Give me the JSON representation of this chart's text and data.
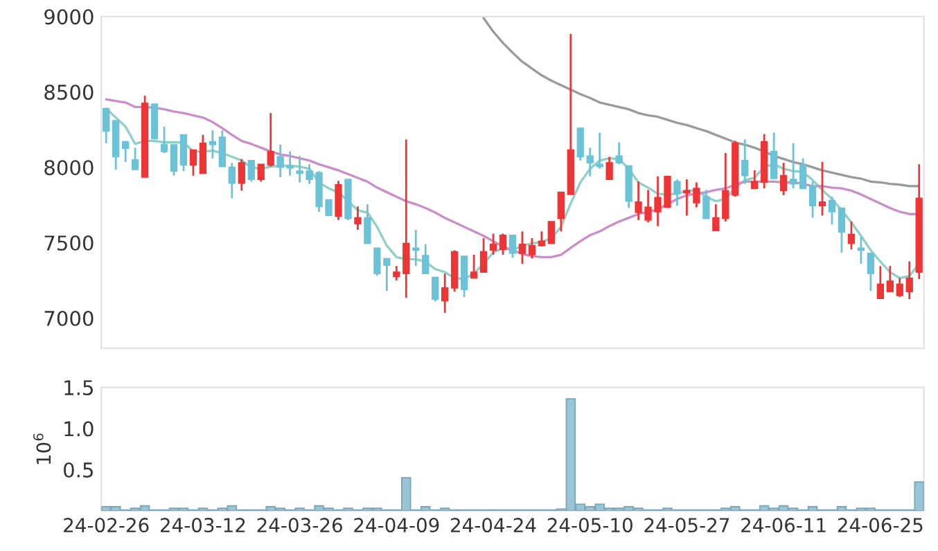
{
  "chart_data": [
    {
      "type": "candlestick",
      "categories": [
        null,
        null,
        null,
        null,
        null,
        null,
        null,
        null,
        null,
        null,
        null,
        null,
        null,
        null,
        null,
        null,
        null,
        null,
        null,
        null,
        null,
        null,
        null,
        null,
        null,
        null,
        null,
        null,
        null,
        null,
        null,
        null,
        null,
        null,
        null,
        null,
        null,
        null,
        null,
        null,
        null,
        null,
        null,
        null,
        null,
        null,
        null,
        null,
        null,
        null,
        null,
        null,
        null,
        null,
        null,
        null,
        null,
        null,
        null,
        null,
        null,
        null,
        null,
        null,
        null,
        null,
        null,
        null,
        null,
        null,
        null,
        null,
        null,
        null,
        null,
        null,
        null,
        null,
        null,
        null,
        null,
        null,
        null,
        null,
        null
      ],
      "ohlc": [
        [
          8390,
          8390,
          8160,
          8240
        ],
        [
          8310,
          8310,
          7985,
          8070
        ],
        [
          8170,
          8170,
          8035,
          8125
        ],
        [
          8050,
          8130,
          7985,
          7985
        ],
        [
          7935,
          8475,
          7935,
          8425
        ],
        [
          8420,
          8420,
          8190,
          8190
        ],
        [
          8150,
          8270,
          8095,
          8105
        ],
        [
          8150,
          8150,
          7945,
          7975
        ],
        [
          8215,
          8215,
          7975,
          8015
        ],
        [
          8015,
          8115,
          7945,
          8115
        ],
        [
          7960,
          8215,
          7960,
          8160
        ],
        [
          8170,
          8245,
          8060,
          8150
        ],
        [
          8200,
          8245,
          8005,
          8005
        ],
        [
          8000,
          8030,
          7795,
          7895
        ],
        [
          7895,
          8055,
          7845,
          8030
        ],
        [
          8045,
          8045,
          7905,
          7920
        ],
        [
          7920,
          8020,
          7905,
          8020
        ],
        [
          8015,
          8360,
          8005,
          8105
        ],
        [
          8070,
          8150,
          7935,
          8000
        ],
        [
          8010,
          8105,
          7945,
          7995
        ],
        [
          7975,
          8075,
          7900,
          7960
        ],
        [
          7975,
          8020,
          7890,
          7920
        ],
        [
          7965,
          7975,
          7705,
          7740
        ],
        [
          7785,
          7785,
          7680,
          7680
        ],
        [
          7675,
          7910,
          7650,
          7885
        ],
        [
          7920,
          7920,
          7650,
          7660
        ],
        [
          7625,
          7740,
          7585,
          7665
        ],
        [
          7665,
          7755,
          7495,
          7495
        ],
        [
          7465,
          7465,
          7280,
          7295
        ],
        [
          7395,
          7395,
          7180,
          7350
        ],
        [
          7275,
          7345,
          7250,
          7305
        ],
        [
          7295,
          8185,
          7135,
          7495
        ],
        [
          7465,
          7585,
          7345,
          7450
        ],
        [
          7415,
          7490,
          7295,
          7295
        ],
        [
          7270,
          7270,
          7110,
          7125
        ],
        [
          7115,
          7295,
          7035,
          7200
        ],
        [
          7200,
          7450,
          7175,
          7440
        ],
        [
          7410,
          7410,
          7140,
          7190
        ],
        [
          7265,
          7420,
          7265,
          7305
        ],
        [
          7305,
          7530,
          7305,
          7440
        ],
        [
          7450,
          7560,
          7420,
          7490
        ],
        [
          7455,
          7560,
          7420,
          7550
        ],
        [
          7550,
          7550,
          7400,
          7430
        ],
        [
          7430,
          7575,
          7360,
          7490
        ],
        [
          7420,
          7530,
          7395,
          7480
        ],
        [
          7480,
          7575,
          7475,
          7510
        ],
        [
          7495,
          7640,
          7495,
          7640
        ],
        [
          7660,
          7835,
          7575,
          7835
        ],
        [
          7820,
          8885,
          7820,
          8115
        ],
        [
          8260,
          8260,
          8045,
          8070
        ],
        [
          8075,
          8130,
          7940,
          8030
        ],
        [
          8020,
          8230,
          7990,
          8005
        ],
        [
          7920,
          8070,
          7920,
          8030
        ],
        [
          8075,
          8165,
          8020,
          8030
        ],
        [
          8010,
          8010,
          7730,
          7775
        ],
        [
          7700,
          7905,
          7650,
          7770
        ],
        [
          7650,
          7850,
          7635,
          7735
        ],
        [
          7705,
          7940,
          7610,
          7800
        ],
        [
          7735,
          7940,
          7730,
          7940
        ],
        [
          7905,
          7920,
          7745,
          7825
        ],
        [
          7830,
          7920,
          7680,
          7845
        ],
        [
          7765,
          7900,
          7735,
          7860
        ],
        [
          7805,
          7850,
          7660,
          7660
        ],
        [
          7580,
          7755,
          7580,
          7665
        ],
        [
          7660,
          8095,
          7640,
          7845
        ],
        [
          7815,
          8175,
          7805,
          8160
        ],
        [
          8045,
          8185,
          7890,
          7945
        ],
        [
          7860,
          7980,
          7860,
          7905
        ],
        [
          7900,
          8220,
          7860,
          8170
        ],
        [
          8105,
          8230,
          7925,
          7925
        ],
        [
          7845,
          8030,
          7815,
          7945
        ],
        [
          7920,
          8160,
          7860,
          7890
        ],
        [
          8015,
          8060,
          7860,
          7860
        ],
        [
          7875,
          7905,
          7665,
          7745
        ],
        [
          7745,
          8035,
          7680,
          7770
        ],
        [
          7780,
          7805,
          7620,
          7705
        ],
        [
          7730,
          7730,
          7435,
          7570
        ],
        [
          7495,
          7640,
          7455,
          7555
        ],
        [
          7465,
          7535,
          7360,
          7450
        ],
        [
          7430,
          7430,
          7180,
          7295
        ],
        [
          7130,
          7345,
          7125,
          7225
        ],
        [
          7175,
          7345,
          7175,
          7245
        ],
        [
          7150,
          7265,
          7140,
          7225
        ],
        [
          7175,
          7375,
          7125,
          7265
        ],
        [
          7305,
          8020,
          7260,
          7795
        ]
      ],
      "colors": [
        "#6cc2d6",
        "#6cc2d6",
        "#6cc2d6",
        "#6cc2d6",
        "#ee3536",
        "#6cc2d6",
        "#6cc2d6",
        "#6cc2d6",
        "#6cc2d6",
        "#ee3536",
        "#ee3536",
        "#6cc2d6",
        "#6cc2d6",
        "#6cc2d6",
        "#ee3536",
        "#6cc2d6",
        "#ee3536",
        "#ee3536",
        "#6cc2d6",
        "#6cc2d6",
        "#6cc2d6",
        "#6cc2d6",
        "#6cc2d6",
        "#6cc2d6",
        "#ee3536",
        "#6cc2d6",
        "#ee3536",
        "#6cc2d6",
        "#6cc2d6",
        "#6cc2d6",
        "#ee3536",
        "#ee3536",
        "#6cc2d6",
        "#6cc2d6",
        "#6cc2d6",
        "#ee3536",
        "#ee3536",
        "#6cc2d6",
        "#ee3536",
        "#ee3536",
        "#ee3536",
        "#ee3536",
        "#6cc2d6",
        "#ee3536",
        "#ee3536",
        "#ee3536",
        "#ee3536",
        "#ee3536",
        "#ee3536",
        "#6cc2d6",
        "#6cc2d6",
        "#6cc2d6",
        "#ee3536",
        "#6cc2d6",
        "#6cc2d6",
        "#ee3536",
        "#ee3536",
        "#ee3536",
        "#ee3536",
        "#6cc2d6",
        "#ee3536",
        "#ee3536",
        "#6cc2d6",
        "#ee3536",
        "#ee3536",
        "#ee3536",
        "#6cc2d6",
        "#ee3536",
        "#ee3536",
        "#6cc2d6",
        "#ee3536",
        "#6cc2d6",
        "#6cc2d6",
        "#6cc2d6",
        "#ee3536",
        "#6cc2d6",
        "#6cc2d6",
        "#ee3536",
        "#6cc2d6",
        "#6cc2d6",
        "#ee3536",
        "#ee3536",
        "#ee3536",
        "#ee3536",
        "#ee3536"
      ],
      "series": [
        {
          "type": "line",
          "color": "#8fd0c7",
          "values": [
            8390,
            8330,
            8270,
            8155,
            8175,
            8175,
            8165,
            8165,
            8165,
            8105,
            8105,
            8110,
            8095,
            8070,
            8045,
            8000,
            7990,
            8005,
            8010,
            8010,
            8005,
            7990,
            7900,
            7860,
            7835,
            7775,
            7715,
            7700,
            7605,
            7480,
            7405,
            7390,
            7390,
            7375,
            7325,
            7305,
            7265,
            7260,
            7295,
            7360,
            7435,
            7465,
            7450,
            7480,
            7495,
            7505,
            7530,
            7605,
            7760,
            7900,
            7990,
            8045,
            8060,
            8055,
            7990,
            7900,
            7865,
            7825,
            7820,
            7825,
            7845,
            7845,
            7805,
            7775,
            7790,
            7865,
            7915,
            7930,
            8005,
            8020,
            7990,
            7975,
            7970,
            7915,
            7850,
            7790,
            7715,
            7635,
            7545,
            7450,
            7375,
            7305,
            7265,
            7280,
            7360
          ]
        },
        {
          "type": "line",
          "color": "#c98ec8",
          "values": [
            8450,
            8440,
            8430,
            8400,
            8400,
            8395,
            8385,
            8370,
            8360,
            8345,
            8330,
            8300,
            8260,
            8215,
            8175,
            8155,
            8130,
            8105,
            8085,
            8075,
            8060,
            8045,
            8020,
            8000,
            7980,
            7955,
            7930,
            7905,
            7865,
            7835,
            7805,
            7775,
            7755,
            7730,
            7700,
            7665,
            7635,
            7605,
            7575,
            7545,
            7510,
            7475,
            7450,
            7425,
            7410,
            7405,
            7405,
            7420,
            7465,
            7510,
            7550,
            7575,
            7610,
            7640,
            7665,
            7690,
            7705,
            7720,
            7755,
            7790,
            7815,
            7825,
            7835,
            7850,
            7860,
            7885,
            7905,
            7905,
            7905,
            7905,
            7900,
            7900,
            7890,
            7875,
            7875,
            7865,
            7860,
            7845,
            7820,
            7790,
            7760,
            7730,
            7705,
            7690,
            7690
          ]
        },
        {
          "type": "line",
          "color": "#9a9a9a",
          "values": [
            null,
            null,
            null,
            null,
            null,
            null,
            null,
            null,
            null,
            null,
            null,
            null,
            null,
            null,
            null,
            null,
            null,
            null,
            null,
            null,
            null,
            null,
            null,
            null,
            null,
            null,
            null,
            null,
            null,
            null,
            null,
            null,
            null,
            null,
            null,
            null,
            null,
            null,
            null,
            8990,
            8900,
            8825,
            8760,
            8700,
            8655,
            8610,
            8575,
            8545,
            8515,
            8485,
            8460,
            8430,
            8415,
            8400,
            8385,
            8360,
            8345,
            8335,
            8315,
            8295,
            8280,
            8260,
            8240,
            8215,
            8190,
            8165,
            8150,
            8130,
            8105,
            8075,
            8055,
            8035,
            8020,
            8000,
            7980,
            7965,
            7950,
            7935,
            7925,
            7905,
            7900,
            7890,
            7885,
            7875,
            7875
          ]
        }
      ],
      "ylim": [
        6800,
        9000
      ],
      "yticks": [
        7000,
        7500,
        8000,
        8500,
        9000
      ],
      "tick_labels": "y"
    },
    {
      "type": "bar",
      "categories": [
        "24-02-26",
        null,
        null,
        null,
        null,
        null,
        null,
        null,
        null,
        null,
        "24-03-12",
        null,
        null,
        null,
        null,
        null,
        null,
        null,
        null,
        null,
        "24-03-26",
        null,
        null,
        null,
        null,
        null,
        null,
        null,
        null,
        null,
        "24-04-09",
        null,
        null,
        null,
        null,
        null,
        null,
        null,
        null,
        null,
        "24-04-24",
        null,
        null,
        null,
        null,
        null,
        null,
        null,
        null,
        null,
        "24-05-10",
        null,
        null,
        null,
        null,
        null,
        null,
        null,
        null,
        null,
        "24-05-27",
        null,
        null,
        null,
        null,
        null,
        null,
        null,
        null,
        null,
        "24-06-11",
        null,
        null,
        null,
        null,
        null,
        null,
        null,
        null,
        null,
        "24-06-25",
        null,
        null,
        null,
        null
      ],
      "values": [
        0.05,
        0.05,
        0.01,
        0.03,
        0.06,
        0.01,
        0.01,
        0.03,
        0.03,
        0.01,
        0.03,
        0.01,
        0.03,
        0.06,
        0.01,
        0.01,
        0.01,
        0.05,
        0.03,
        0.01,
        0.03,
        0.01,
        0.06,
        0.03,
        0.01,
        0.03,
        0.01,
        0.03,
        0.03,
        0.01,
        0.01,
        0.4,
        0.01,
        0.05,
        0.01,
        0.03,
        0.01,
        0.01,
        0.01,
        0.01,
        0.01,
        0.01,
        0.01,
        0.01,
        0.01,
        0.01,
        0.01,
        0.02,
        1.36,
        0.08,
        0.05,
        0.08,
        0.03,
        0.03,
        0.05,
        0.03,
        0.01,
        0.01,
        0.03,
        0.01,
        0.01,
        0.01,
        0.01,
        0.01,
        0.03,
        0.05,
        0.01,
        0.01,
        0.06,
        0.03,
        0.06,
        0.03,
        0.01,
        0.05,
        0.01,
        0.01,
        0.05,
        0.01,
        0.03,
        0.03,
        0.01,
        0.01,
        0.01,
        0.01,
        0.35
      ],
      "color": "#9bc4d4",
      "ylabel": "10$^{6}$",
      "ylim": [
        0,
        1.5
      ],
      "yticks": [
        0.5,
        {
          "value": 1,
          "label": "1.0"
        },
        1.5
      ]
    }
  ]
}
